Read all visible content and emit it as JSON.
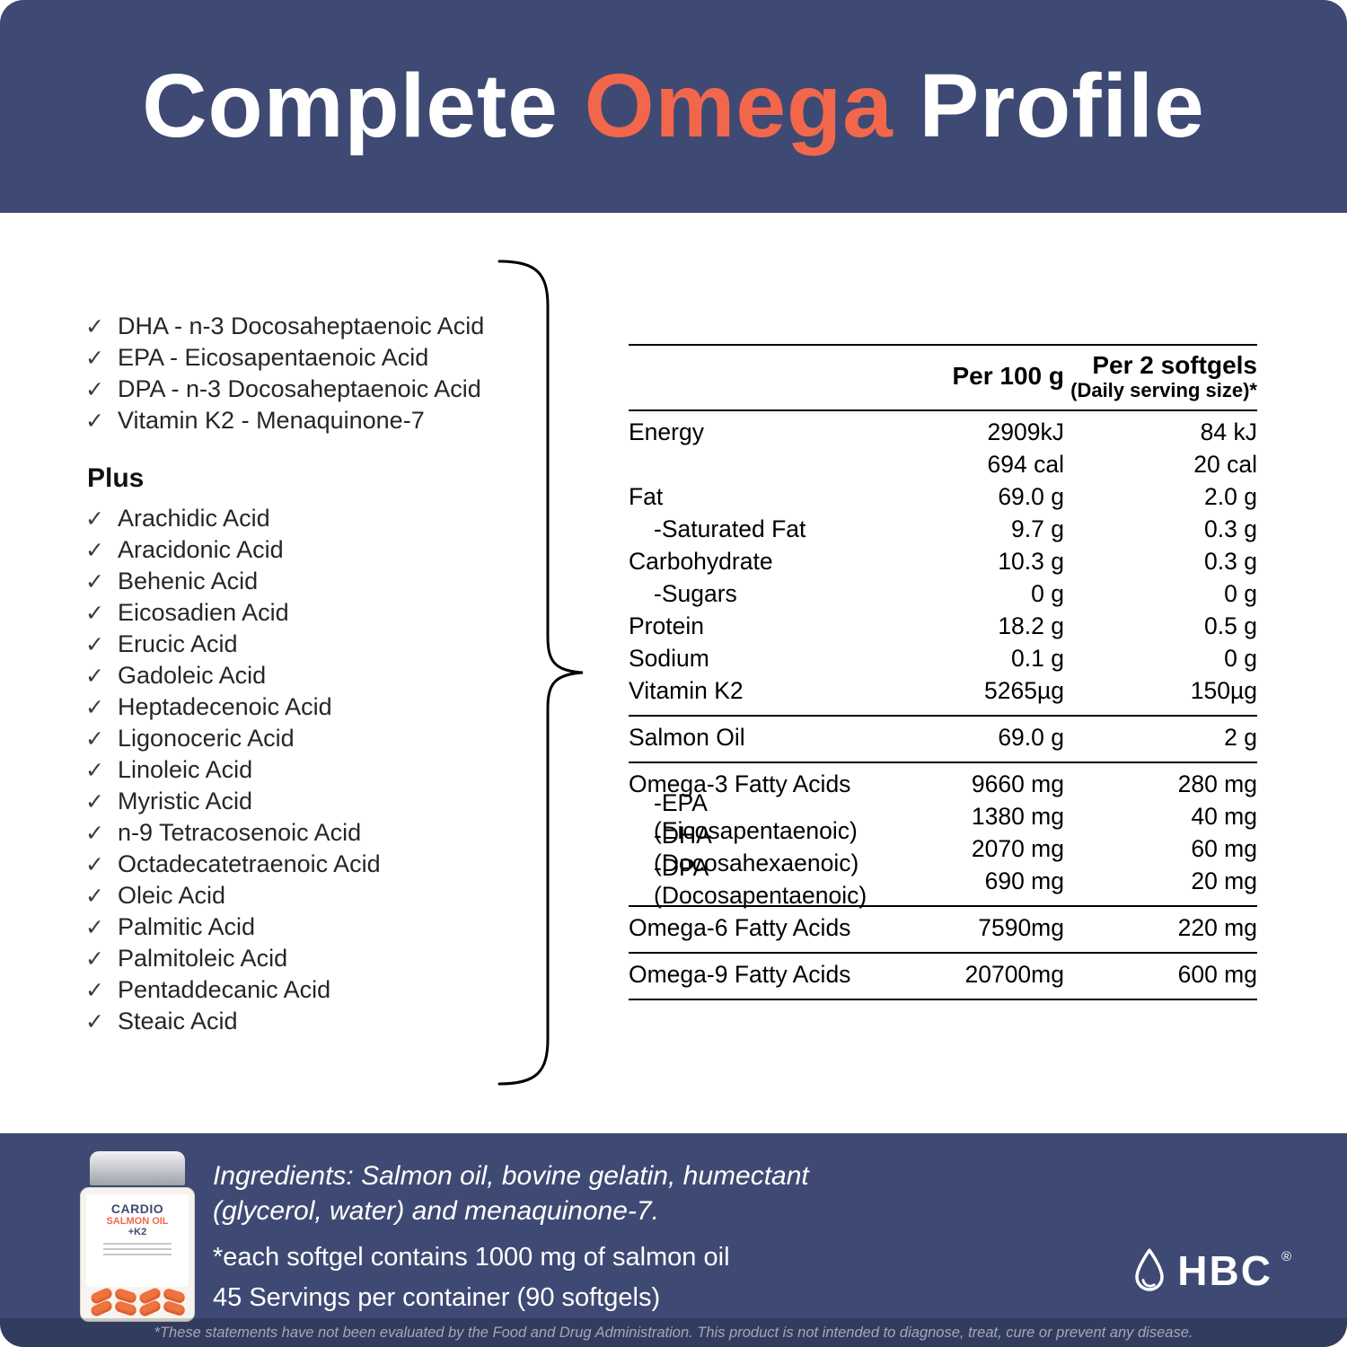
{
  "header": {
    "title_part1": "Complete ",
    "title_highlight": "Omega",
    "title_part2": " Profile"
  },
  "colors": {
    "navy": "#3e4a73",
    "orange": "#f2674b"
  },
  "checklist": {
    "check_glyph": "✓",
    "main_items": [
      "DHA - n-3 Docosaheptaenoic Acid",
      "EPA - Eicosapentaenoic Acid",
      "DPA - n-3 Docosaheptaenoic Acid",
      "Vitamin K2 - Menaquinone-7"
    ],
    "plus_label": "Plus",
    "plus_items": [
      "Arachidic Acid",
      "Aracidonic Acid",
      "Behenic Acid",
      "Eicosadien Acid",
      "Erucic Acid",
      "Gadoleic Acid",
      "Heptadecenoic Acid",
      "Ligonoceric Acid",
      "Linoleic Acid",
      "Myristic Acid",
      "n-9 Tetracosenoic Acid",
      "Octadecatetraenoic Acid",
      "Oleic Acid",
      "Palmitic Acid",
      "Palmitoleic Acid",
      "Pentaddecanic Acid",
      "Steaic Acid"
    ]
  },
  "nutrition_table": {
    "header": {
      "per100": "Per 100 g",
      "per2_line1": "Per 2 softgels",
      "per2_line2": "(Daily serving size)*"
    },
    "sections": [
      {
        "rows": [
          {
            "label": "Energy",
            "per100": "2909kJ",
            "per2": "84 kJ"
          },
          {
            "label": "",
            "per100": "694 cal",
            "per2": "20 cal"
          },
          {
            "label": "Fat",
            "per100": "69.0 g",
            "per2": "2.0 g"
          },
          {
            "label": "-Saturated Fat",
            "per100": "9.7 g",
            "per2": "0.3 g",
            "indent": true
          },
          {
            "label": "Carbohydrate",
            "per100": "10.3 g",
            "per2": "0.3 g"
          },
          {
            "label": "-Sugars",
            "per100": "0 g",
            "per2": "0 g",
            "indent": true
          },
          {
            "label": "Protein",
            "per100": "18.2 g",
            "per2": "0.5 g"
          },
          {
            "label": "Sodium",
            "per100": "0.1 g",
            "per2": "0 g"
          },
          {
            "label": "Vitamin K2",
            "per100": "5265µg",
            "per2": "150µg"
          }
        ]
      },
      {
        "rows": [
          {
            "label": "Salmon Oil",
            "per100": "69.0 g",
            "per2": "2 g"
          }
        ]
      },
      {
        "rows": [
          {
            "label": "Omega-3 Fatty Acids",
            "per100": "9660 mg",
            "per2": "280 mg"
          },
          {
            "label": "-EPA (Eicosapentaenoic)",
            "per100": "1380 mg",
            "per2": "40 mg",
            "indent": true
          },
          {
            "label": "-DHA (Docosahexaenoic)",
            "per100": "2070 mg",
            "per2": "60 mg",
            "indent": true
          },
          {
            "label": "-DPA (Docosapentaenoic)",
            "per100": "690 mg",
            "per2": "20 mg",
            "indent": true
          }
        ]
      },
      {
        "rows": [
          {
            "label": "Omega-6 Fatty Acids",
            "per100": "7590mg",
            "per2": "220 mg"
          }
        ]
      },
      {
        "rows": [
          {
            "label": "Omega-9 Fatty Acids",
            "per100": "20700mg",
            "per2": "600 mg"
          }
        ]
      }
    ]
  },
  "bottle": {
    "line1": "CARDIO",
    "line2": "SALMON OIL",
    "line3": "+K2"
  },
  "footer": {
    "ingredients": "Ingredients: Salmon oil, bovine gelatin, humectant (glycerol, water) and menaquinone-7.",
    "softgel_note": "*each softgel contains 1000 mg of salmon oil",
    "servings": "45 Servings per container (90 softgels)",
    "brand": "HBC",
    "brand_reg": "®",
    "disclaimer": "*These statements have not been evaluated by the Food and Drug Administration. This product is not intended to diagnose, treat, cure or prevent any disease."
  }
}
